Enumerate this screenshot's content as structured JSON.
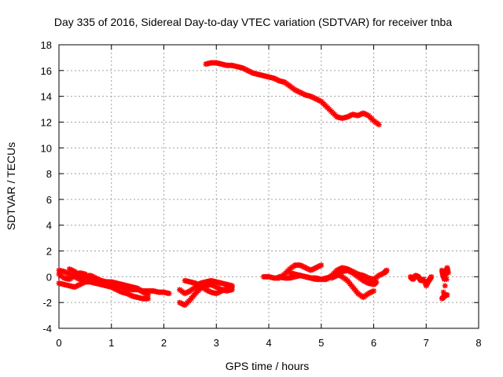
{
  "chart_data": {
    "type": "scatter",
    "title": "Day 335 of 2016, Sidereal Day-to-day VTEC variation (SDTVAR) for receiver tnba",
    "xlabel": "GPS time / hours",
    "ylabel": "SDTVAR / TECUs",
    "xlim": [
      0,
      8
    ],
    "ylim": [
      -4,
      18
    ],
    "xticks": [
      "0",
      "1",
      "2",
      "3",
      "4",
      "5",
      "6",
      "7",
      "8"
    ],
    "yticks": [
      "-4",
      "-2",
      "0",
      "2",
      "4",
      "6",
      "8",
      "10",
      "12",
      "14",
      "16",
      "18"
    ],
    "grid": true,
    "marker": "star",
    "color": "#ff0000",
    "series": [
      {
        "name": "track-upper",
        "points": [
          [
            2.8,
            16.5
          ],
          [
            2.9,
            16.6
          ],
          [
            3.0,
            16.6
          ],
          [
            3.1,
            16.5
          ],
          [
            3.2,
            16.4
          ],
          [
            3.3,
            16.4
          ],
          [
            3.4,
            16.3
          ],
          [
            3.5,
            16.2
          ],
          [
            3.6,
            16.0
          ],
          [
            3.7,
            15.8
          ],
          [
            3.8,
            15.7
          ],
          [
            3.9,
            15.6
          ],
          [
            4.0,
            15.5
          ],
          [
            4.1,
            15.4
          ],
          [
            4.2,
            15.2
          ],
          [
            4.3,
            15.1
          ],
          [
            4.4,
            14.8
          ],
          [
            4.5,
            14.5
          ],
          [
            4.6,
            14.3
          ],
          [
            4.7,
            14.1
          ],
          [
            4.8,
            14.0
          ],
          [
            4.9,
            13.8
          ],
          [
            5.0,
            13.6
          ],
          [
            5.1,
            13.2
          ],
          [
            5.2,
            12.8
          ],
          [
            5.3,
            12.4
          ],
          [
            5.4,
            12.3
          ],
          [
            5.5,
            12.4
          ],
          [
            5.6,
            12.6
          ],
          [
            5.7,
            12.5
          ],
          [
            5.8,
            12.7
          ],
          [
            5.9,
            12.5
          ],
          [
            6.0,
            12.1
          ],
          [
            6.1,
            11.8
          ]
        ]
      },
      {
        "name": "track-a",
        "points": [
          [
            0.0,
            0.5
          ],
          [
            0.1,
            0.4
          ],
          [
            0.2,
            0.2
          ],
          [
            0.3,
            0.0
          ],
          [
            0.4,
            -0.2
          ],
          [
            0.5,
            -0.3
          ],
          [
            0.6,
            -0.4
          ],
          [
            0.7,
            -0.5
          ],
          [
            0.8,
            -0.5
          ],
          [
            0.9,
            -0.6
          ],
          [
            1.0,
            -0.6
          ],
          [
            1.1,
            -0.7
          ],
          [
            1.2,
            -0.8
          ],
          [
            1.3,
            -0.9
          ],
          [
            1.4,
            -1.0
          ],
          [
            1.5,
            -1.0
          ],
          [
            1.6,
            -1.1
          ],
          [
            1.7,
            -1.1
          ],
          [
            1.8,
            -1.1
          ],
          [
            1.9,
            -1.2
          ],
          [
            2.0,
            -1.2
          ],
          [
            2.1,
            -1.3
          ]
        ]
      },
      {
        "name": "track-b",
        "points": [
          [
            0.0,
            -0.5
          ],
          [
            0.1,
            -0.6
          ],
          [
            0.2,
            -0.7
          ],
          [
            0.3,
            -0.8
          ],
          [
            0.4,
            -0.6
          ],
          [
            0.5,
            -0.4
          ],
          [
            0.6,
            -0.4
          ],
          [
            0.7,
            -0.5
          ],
          [
            0.8,
            -0.6
          ],
          [
            0.9,
            -0.7
          ],
          [
            1.0,
            -0.8
          ],
          [
            1.1,
            -1.0
          ],
          [
            1.2,
            -1.2
          ],
          [
            1.3,
            -1.3
          ],
          [
            1.4,
            -1.5
          ],
          [
            1.5,
            -1.6
          ],
          [
            1.6,
            -1.7
          ],
          [
            1.7,
            -1.7
          ]
        ]
      },
      {
        "name": "track-c",
        "points": [
          [
            0.0,
            0.2
          ],
          [
            0.1,
            -0.1
          ],
          [
            0.2,
            -0.2
          ],
          [
            0.3,
            0.1
          ],
          [
            0.4,
            0.3
          ],
          [
            0.5,
            0.2
          ],
          [
            0.6,
            -0.1
          ],
          [
            0.7,
            -0.3
          ],
          [
            0.8,
            -0.3
          ],
          [
            0.9,
            -0.4
          ],
          [
            1.0,
            -0.5
          ],
          [
            1.1,
            -0.6
          ],
          [
            1.2,
            -0.6
          ],
          [
            1.3,
            -0.7
          ],
          [
            1.4,
            -0.8
          ],
          [
            1.5,
            -0.9
          ],
          [
            1.6,
            -1.2
          ],
          [
            1.7,
            -1.4
          ]
        ]
      },
      {
        "name": "track-d",
        "points": [
          [
            0.2,
            0.6
          ],
          [
            0.3,
            0.4
          ],
          [
            0.4,
            0.1
          ],
          [
            0.5,
            0.0
          ],
          [
            0.6,
            0.1
          ],
          [
            0.7,
            -0.1
          ],
          [
            0.8,
            -0.3
          ],
          [
            0.9,
            -0.4
          ],
          [
            1.0,
            -0.4
          ],
          [
            1.1,
            -0.5
          ],
          [
            1.2,
            -0.6
          ]
        ]
      },
      {
        "name": "track-e",
        "points": [
          [
            2.3,
            -2.0
          ],
          [
            2.4,
            -2.2
          ],
          [
            2.5,
            -1.8
          ],
          [
            2.6,
            -1.3
          ],
          [
            2.7,
            -0.9
          ],
          [
            2.8,
            -0.7
          ],
          [
            2.9,
            -0.6
          ],
          [
            3.0,
            -0.8
          ],
          [
            3.1,
            -1.0
          ],
          [
            3.2,
            -1.1
          ],
          [
            3.3,
            -1.0
          ]
        ]
      },
      {
        "name": "track-f",
        "points": [
          [
            2.3,
            -1.0
          ],
          [
            2.4,
            -1.3
          ],
          [
            2.5,
            -1.1
          ],
          [
            2.6,
            -0.8
          ],
          [
            2.7,
            -0.5
          ],
          [
            2.8,
            -0.4
          ],
          [
            2.9,
            -0.3
          ],
          [
            3.0,
            -0.4
          ],
          [
            3.1,
            -0.5
          ],
          [
            3.2,
            -0.6
          ],
          [
            3.3,
            -0.7
          ]
        ]
      },
      {
        "name": "track-g",
        "points": [
          [
            2.4,
            -0.3
          ],
          [
            2.5,
            -0.4
          ],
          [
            2.6,
            -0.5
          ],
          [
            2.7,
            -0.7
          ],
          [
            2.8,
            -1.0
          ],
          [
            2.9,
            -1.2
          ],
          [
            3.0,
            -1.3
          ],
          [
            3.1,
            -1.1
          ],
          [
            3.2,
            -0.9
          ],
          [
            3.3,
            -0.8
          ]
        ]
      },
      {
        "name": "track-h",
        "points": [
          [
            3.9,
            0.0
          ],
          [
            4.0,
            0.0
          ],
          [
            4.1,
            -0.1
          ],
          [
            4.2,
            -0.1
          ],
          [
            4.3,
            0.2
          ],
          [
            4.4,
            0.6
          ],
          [
            4.5,
            0.9
          ],
          [
            4.6,
            0.9
          ],
          [
            4.7,
            0.7
          ],
          [
            4.8,
            0.5
          ],
          [
            4.9,
            0.7
          ],
          [
            5.0,
            0.9
          ]
        ]
      },
      {
        "name": "track-i",
        "points": [
          [
            4.2,
            0.0
          ],
          [
            4.3,
            -0.1
          ],
          [
            4.4,
            -0.1
          ],
          [
            4.5,
            0.0
          ],
          [
            4.6,
            0.1
          ],
          [
            4.7,
            0.0
          ],
          [
            4.8,
            -0.1
          ],
          [
            4.9,
            -0.2
          ],
          [
            5.0,
            -0.2
          ],
          [
            5.1,
            -0.1
          ],
          [
            5.2,
            0.0
          ],
          [
            5.3,
            0.2
          ],
          [
            5.4,
            0.0
          ],
          [
            5.5,
            -0.3
          ],
          [
            5.6,
            -0.8
          ],
          [
            5.7,
            -1.3
          ],
          [
            5.8,
            -1.6
          ],
          [
            5.9,
            -1.3
          ],
          [
            6.0,
            -1.1
          ]
        ]
      },
      {
        "name": "track-j",
        "points": [
          [
            4.4,
            0.3
          ],
          [
            4.5,
            0.2
          ],
          [
            4.6,
            0.1
          ],
          [
            4.7,
            0.0
          ],
          [
            4.8,
            -0.1
          ],
          [
            4.9,
            -0.1
          ],
          [
            5.0,
            -0.2
          ],
          [
            5.1,
            -0.2
          ],
          [
            5.2,
            0.1
          ],
          [
            5.3,
            0.5
          ],
          [
            5.4,
            0.7
          ],
          [
            5.5,
            0.6
          ],
          [
            5.6,
            0.4
          ],
          [
            5.7,
            0.2
          ],
          [
            5.8,
            0.1
          ],
          [
            5.9,
            -0.1
          ],
          [
            6.0,
            -0.2
          ],
          [
            6.1,
            0.1
          ],
          [
            6.2,
            0.3
          ],
          [
            6.25,
            0.5
          ]
        ]
      },
      {
        "name": "track-k",
        "points": [
          [
            5.2,
            -0.1
          ],
          [
            5.3,
            0.1
          ],
          [
            5.4,
            0.4
          ],
          [
            5.5,
            0.5
          ],
          [
            5.6,
            0.3
          ],
          [
            5.7,
            0.0
          ],
          [
            5.8,
            -0.3
          ],
          [
            5.9,
            -0.5
          ],
          [
            6.0,
            -0.6
          ],
          [
            6.05,
            -0.4
          ]
        ]
      },
      {
        "name": "track-l",
        "points": [
          [
            6.7,
            0.0
          ],
          [
            6.75,
            -0.2
          ],
          [
            6.8,
            0.1
          ],
          [
            6.85,
            0.0
          ],
          [
            6.9,
            -0.3
          ],
          [
            6.95,
            -0.2
          ],
          [
            7.0,
            -0.7
          ],
          [
            7.05,
            -0.3
          ],
          [
            7.1,
            0.0
          ]
        ]
      },
      {
        "name": "track-m",
        "points": [
          [
            7.3,
            0.5
          ],
          [
            7.32,
            0.1
          ],
          [
            7.35,
            -0.2
          ],
          [
            7.38,
            0.3
          ],
          [
            7.4,
            0.7
          ],
          [
            7.42,
            0.3
          ],
          [
            7.3,
            -1.7
          ],
          [
            7.35,
            -1.5
          ],
          [
            7.4,
            -1.4
          ]
        ]
      }
    ]
  }
}
